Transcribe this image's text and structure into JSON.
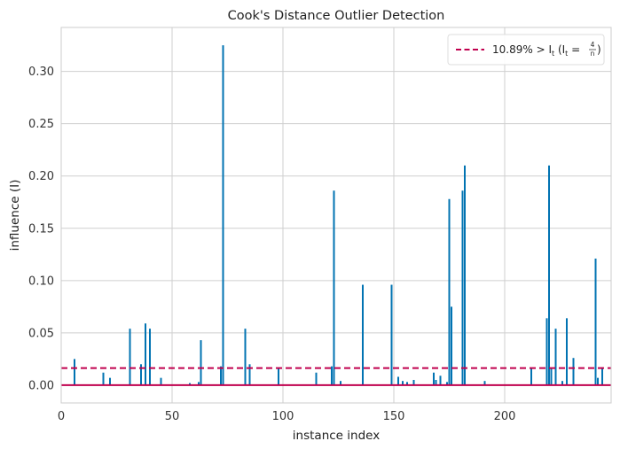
{
  "chart_data": {
    "type": "stem",
    "title": "Cook's Distance Outlier Detection",
    "xlabel": "instance index",
    "ylabel": "influence (I)",
    "xlim": [
      0,
      248
    ],
    "ylim": [
      -0.017,
      0.342
    ],
    "xticks": [
      0,
      50,
      100,
      150,
      200
    ],
    "yticks": [
      0.0,
      0.05,
      0.1,
      0.15,
      0.2,
      0.25,
      0.3
    ],
    "ytick_labels": [
      "0.00",
      "0.05",
      "0.10",
      "0.15",
      "0.20",
      "0.25",
      "0.30"
    ],
    "grid": true,
    "legend_position": "top-right",
    "colors": {
      "stem": "#0173b2",
      "baseline": "#c0004e",
      "threshold": "#c0004e",
      "grid": "#cfcfcf",
      "frame": "#cccccc"
    },
    "threshold": {
      "value": 0.0163,
      "label": "10.89% > I",
      "label_sub": "t",
      "label_rest": " (I",
      "label_rest_sub": "t",
      "label_eq": " = ",
      "label_frac_num": "4",
      "label_frac_den": "n",
      "label_close": ")"
    },
    "points": [
      [
        6,
        0.025
      ],
      [
        19,
        0.012
      ],
      [
        22,
        0.007
      ],
      [
        31,
        0.054
      ],
      [
        36,
        0.02
      ],
      [
        38,
        0.059
      ],
      [
        40,
        0.054
      ],
      [
        45,
        0.007
      ],
      [
        58,
        0.002
      ],
      [
        62,
        0.003
      ],
      [
        63,
        0.043
      ],
      [
        72,
        0.018
      ],
      [
        73,
        0.325
      ],
      [
        83,
        0.054
      ],
      [
        85,
        0.02
      ],
      [
        98,
        0.016
      ],
      [
        115,
        0.012
      ],
      [
        122,
        0.018
      ],
      [
        123,
        0.186
      ],
      [
        126,
        0.004
      ],
      [
        136,
        0.096
      ],
      [
        149,
        0.096
      ],
      [
        152,
        0.008
      ],
      [
        154,
        0.004
      ],
      [
        156,
        0.003
      ],
      [
        159,
        0.005
      ],
      [
        168,
        0.012
      ],
      [
        169,
        0.005
      ],
      [
        171,
        0.009
      ],
      [
        174,
        0.003
      ],
      [
        175,
        0.178
      ],
      [
        176,
        0.075
      ],
      [
        181,
        0.186
      ],
      [
        182,
        0.21
      ],
      [
        191,
        0.004
      ],
      [
        212,
        0.016
      ],
      [
        219,
        0.064
      ],
      [
        220,
        0.21
      ],
      [
        221,
        0.016
      ],
      [
        223,
        0.054
      ],
      [
        226,
        0.004
      ],
      [
        228,
        0.064
      ],
      [
        231,
        0.026
      ],
      [
        241,
        0.121
      ],
      [
        242,
        0.007
      ],
      [
        244,
        0.017
      ]
    ]
  }
}
